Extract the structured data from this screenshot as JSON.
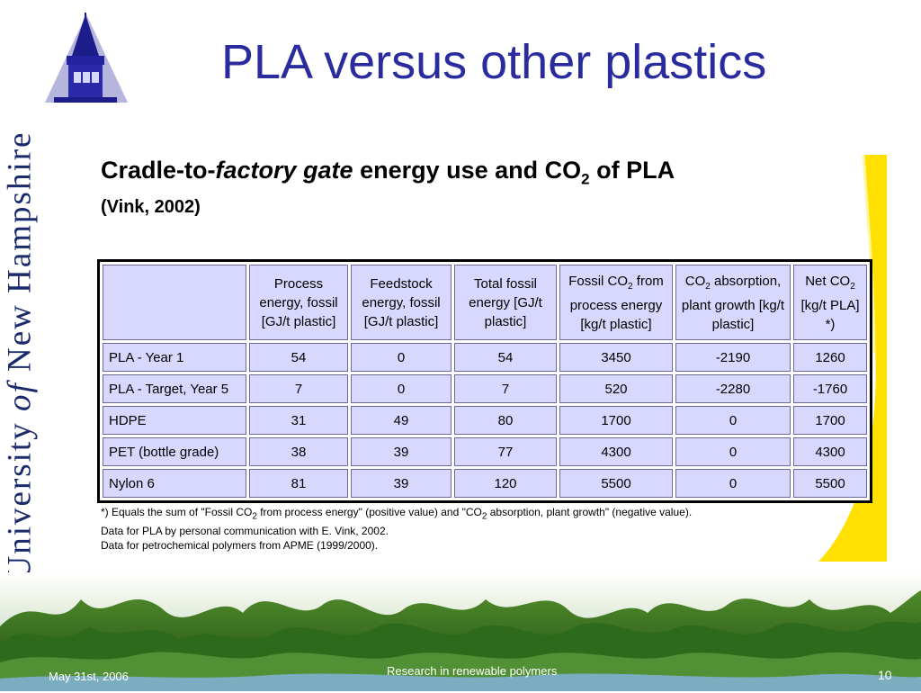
{
  "banner": {
    "part1": "University ",
    "of": "of",
    "part2": " New Hampshire"
  },
  "title": "PLA versus other plastics",
  "subtitle": {
    "part1": "Cradle-to-",
    "italic": "factory gate",
    "part2": " energy use and CO",
    "sub": "2",
    "part3": " of PLA",
    "source": "(Vink, 2002)"
  },
  "table": {
    "headers": [
      "",
      "Process energy, fossil [GJ/t plastic]",
      "Feedstock energy, fossil [GJ/t plastic]",
      "Total fossil energy [GJ/t plastic]",
      "Fossil CO2 from process energy [kg/t plastic]",
      "CO2 absorption, plant growth [kg/t plastic]",
      "Net CO2 [kg/t PLA] *)"
    ],
    "rows": [
      [
        "PLA - Year 1",
        "54",
        "0",
        "54",
        "3450",
        "-2190",
        "1260"
      ],
      [
        "PLA - Target, Year 5",
        "7",
        "0",
        "7",
        "520",
        "-2280",
        "-1760"
      ],
      [
        "HDPE",
        "31",
        "49",
        "80",
        "1700",
        "0",
        "1700"
      ],
      [
        "PET (bottle grade)",
        "38",
        "39",
        "77",
        "4300",
        "0",
        "4300"
      ],
      [
        "Nylon 6",
        "81",
        "39",
        "120",
        "5500",
        "0",
        "5500"
      ]
    ]
  },
  "footnotes": [
    "*) Equals the sum of \"Fossil CO2 from process energy\" (positive value) and \"CO2 absorption, plant growth\" (negative value).",
    "Data for PLA by personal communication with E. Vink, 2002.",
    "Data for petrochemical polymers from APME (1999/2000)."
  ],
  "footer": {
    "date": "May 31st, 2006",
    "center": "Research in renewable polymers",
    "page": "10"
  },
  "colors": {
    "title": "#2b2ba0",
    "table_cell": "#d8d8ff",
    "swoosh": "#ffe000",
    "banner": "#1a2a6b"
  }
}
